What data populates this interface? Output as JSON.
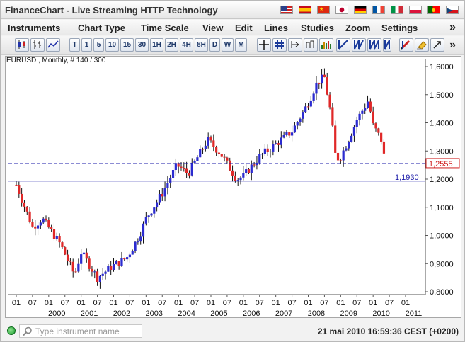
{
  "window": {
    "title": "FinanceChart - Live Streaming HTTP Technology"
  },
  "languages": [
    {
      "icon": "flag-us-icon"
    },
    {
      "icon": "flag-es-icon"
    },
    {
      "icon": "flag-cn-icon"
    },
    {
      "icon": "flag-jp-icon"
    },
    {
      "icon": "flag-de-icon"
    },
    {
      "icon": "flag-fr-icon"
    },
    {
      "icon": "flag-it-icon"
    },
    {
      "icon": "flag-pl-icon"
    },
    {
      "icon": "flag-pt-icon"
    },
    {
      "icon": "flag-cz-icon"
    }
  ],
  "menu": {
    "items": [
      "Instruments",
      "Chart Type",
      "Time Scale",
      "View",
      "Edit",
      "Lines",
      "Studies",
      "Zoom",
      "Settings"
    ],
    "more": "»"
  },
  "toolbar": {
    "timeframes": [
      "T",
      "1",
      "5",
      "10",
      "15",
      "30",
      "1H",
      "2H",
      "4H",
      "8H",
      "D",
      "W",
      "M"
    ],
    "more": "»"
  },
  "chart": {
    "label": "EURUSD , Monthly, # 140 / 300",
    "current_price": "1,2555",
    "line_price": "1,1930"
  },
  "chart_data": {
    "type": "candlestick",
    "instrument": "EURUSD",
    "period": "Monthly",
    "y_ticks": [
      "1,6000",
      "1,5000",
      "1,4000",
      "1,3000",
      "1,2000",
      "1,1000",
      "1,0000",
      "0,9000",
      "0,8000"
    ],
    "ylim": [
      0.8,
      1.6
    ],
    "x_month_ticks": [
      "01",
      "07",
      "01",
      "07",
      "01",
      "07",
      "01",
      "07",
      "01",
      "07",
      "01",
      "07",
      "01",
      "07",
      "01",
      "07",
      "01",
      "07",
      "01",
      "07",
      "01",
      "07",
      "01",
      "07",
      "01"
    ],
    "x_year_labels": [
      "2000",
      "2001",
      "2002",
      "2003",
      "2004",
      "2005",
      "2006",
      "2007",
      "2008",
      "2009",
      "2010",
      "2011"
    ],
    "x_range": [
      "1999-01",
      "2011-01"
    ],
    "current_price_line": 1.2555,
    "horizontal_line": 1.193,
    "close_anchors": [
      [
        1999.0,
        1.18
      ],
      [
        1999.5,
        1.03
      ],
      [
        1999.8,
        1.06
      ],
      [
        2000.35,
        0.97
      ],
      [
        2000.8,
        0.86
      ],
      [
        2001.0,
        0.94
      ],
      [
        2001.5,
        0.85
      ],
      [
        2001.95,
        0.89
      ],
      [
        2002.4,
        0.92
      ],
      [
        2002.8,
        1.0
      ],
      [
        2003.0,
        1.06
      ],
      [
        2003.5,
        1.15
      ],
      [
        2003.95,
        1.25
      ],
      [
        2004.3,
        1.22
      ],
      [
        2004.9,
        1.34
      ],
      [
        2005.3,
        1.29
      ],
      [
        2005.8,
        1.2
      ],
      [
        2006.0,
        1.21
      ],
      [
        2006.5,
        1.28
      ],
      [
        2006.95,
        1.32
      ],
      [
        2007.5,
        1.37
      ],
      [
        2007.95,
        1.46
      ],
      [
        2008.3,
        1.55
      ],
      [
        2008.5,
        1.56
      ],
      [
        2008.7,
        1.43
      ],
      [
        2008.85,
        1.27
      ],
      [
        2009.0,
        1.28
      ],
      [
        2009.2,
        1.33
      ],
      [
        2009.5,
        1.41
      ],
      [
        2009.85,
        1.48
      ],
      [
        2010.0,
        1.39
      ],
      [
        2010.3,
        1.33
      ],
      [
        2010.38,
        1.22
      ]
    ]
  },
  "status": {
    "search_placeholder": "Type instrument name",
    "datetime": "21 mai 2010 16:59:36  CEST (+0200)"
  }
}
